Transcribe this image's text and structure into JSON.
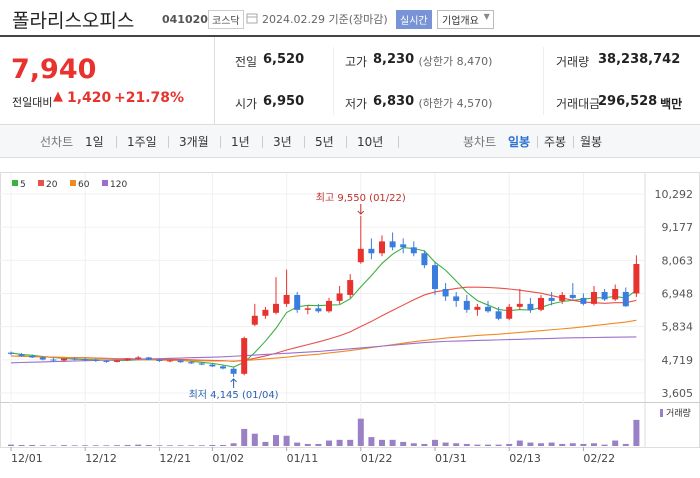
{
  "header": {
    "name": "폴라리스오피스",
    "code": "041020",
    "market": "코스닥",
    "date": "2024.02.29 기준(장마감)",
    "realtime": "실시간",
    "overview": "기업개요"
  },
  "quote": {
    "price": "7,940",
    "change_label": "전일대비",
    "change": "1,420",
    "change_pct": "+21.78%",
    "stats": [
      {
        "label": "전일",
        "value": "6,520"
      },
      {
        "label": "고가",
        "value": "8,230",
        "note": "(상한가 8,470)"
      },
      {
        "label": "거래량",
        "value": "38,238,742"
      },
      {
        "label": "시가",
        "value": "6,950"
      },
      {
        "label": "저가",
        "value": "6,830",
        "note": "(하한가 4,570)"
      },
      {
        "label": "거래대금",
        "value": "296,528",
        "unit": "백만"
      }
    ]
  },
  "tabs": {
    "line_label": "선차트",
    "line_periods": [
      "1일",
      "1주일",
      "3개월",
      "1년",
      "3년",
      "5년",
      "10년"
    ],
    "candle_label": "봉차트",
    "candle_periods": [
      "일봉",
      "주봉",
      "월봉"
    ]
  },
  "chart_data": {
    "type": "candlestick",
    "up_color": "#e8322e",
    "down_color": "#3b7ddd",
    "grid": true,
    "categories": [
      "12/01",
      null,
      null,
      null,
      null,
      null,
      null,
      "12/12",
      null,
      null,
      null,
      null,
      null,
      null,
      "12/21",
      null,
      null,
      null,
      null,
      "01/02",
      null,
      null,
      null,
      null,
      null,
      null,
      "01/11",
      null,
      null,
      null,
      null,
      null,
      null,
      "01/22",
      null,
      null,
      null,
      null,
      null,
      null,
      "01/31",
      null,
      null,
      null,
      null,
      null,
      null,
      "02/13",
      null,
      null,
      null,
      null,
      null,
      null,
      "02/22",
      null,
      null,
      null,
      null,
      null
    ],
    "open": [
      4960,
      4900,
      4850,
      4800,
      4730,
      4700,
      4760,
      4740,
      4720,
      4690,
      4650,
      4700,
      4760,
      4800,
      4720,
      4680,
      4700,
      4640,
      4600,
      4560,
      4500,
      4420,
      4250,
      5900,
      6200,
      6300,
      6600,
      6900,
      6400,
      6450,
      6350,
      6700,
      6900,
      8000,
      8450,
      8300,
      8700,
      8600,
      8500,
      8300,
      7900,
      7100,
      6850,
      6700,
      6400,
      6500,
      6350,
      6100,
      6500,
      6600,
      6400,
      6800,
      6700,
      6900,
      6800,
      6600,
      7000,
      6750,
      7000,
      6950
    ],
    "high": [
      5000,
      4950,
      4900,
      4850,
      4800,
      4780,
      4800,
      4780,
      4760,
      4720,
      4720,
      4780,
      4850,
      4820,
      4760,
      4720,
      4730,
      4680,
      4640,
      4600,
      4550,
      4460,
      5500,
      6600,
      6500,
      7500,
      7750,
      7000,
      6550,
      6600,
      6800,
      7200,
      7600,
      9550,
      8800,
      8900,
      9000,
      8800,
      8700,
      8400,
      8000,
      7300,
      7000,
      6900,
      6600,
      6700,
      6500,
      6600,
      7100,
      6800,
      6900,
      7000,
      7000,
      7300,
      6950,
      7200,
      7100,
      7250,
      7150,
      8230
    ],
    "low": [
      4880,
      4820,
      4780,
      4700,
      4650,
      4650,
      4700,
      4680,
      4650,
      4620,
      4630,
      4680,
      4720,
      4700,
      4650,
      4640,
      4620,
      4580,
      4540,
      4480,
      4400,
      4145,
      4200,
      5850,
      6100,
      6250,
      6500,
      6300,
      6250,
      6300,
      6300,
      6600,
      6800,
      7950,
      8100,
      8200,
      8400,
      8300,
      8200,
      7800,
      6900,
      6700,
      6500,
      6300,
      6200,
      6300,
      6050,
      6050,
      6400,
      6300,
      6350,
      6550,
      6600,
      6750,
      6550,
      6550,
      6700,
      6700,
      6500,
      6830
    ],
    "close": [
      4920,
      4850,
      4800,
      4730,
      4700,
      4760,
      4740,
      4720,
      4690,
      4650,
      4700,
      4760,
      4800,
      4720,
      4680,
      4700,
      4640,
      4600,
      4560,
      4500,
      4430,
      4250,
      5450,
      6200,
      6400,
      6600,
      6900,
      6400,
      6450,
      6350,
      6700,
      6950,
      7400,
      8450,
      8300,
      8700,
      8500,
      8500,
      8300,
      7900,
      7100,
      6850,
      6700,
      6400,
      6500,
      6350,
      6100,
      6500,
      6600,
      6400,
      6800,
      6700,
      6900,
      6800,
      6600,
      7000,
      6750,
      7100,
      6520,
      7940
    ],
    "series": [
      {
        "name": "5",
        "color": "#3cb043",
        "values": [
          4950,
          4900,
          4870,
          4830,
          4800,
          4768,
          4746,
          4730,
          4722,
          4712,
          4700,
          4704,
          4720,
          4726,
          4732,
          4732,
          4708,
          4668,
          4636,
          4600,
          4546,
          4476,
          4638,
          4966,
          5346,
          5780,
          6310,
          6500,
          6550,
          6540,
          6560,
          6570,
          6770,
          7170,
          7550,
          7960,
          8270,
          8490,
          8460,
          8380,
          8000,
          7730,
          7370,
          6990,
          6710,
          6560,
          6410,
          6370,
          6410,
          6390,
          6480,
          6600,
          6680,
          6720,
          6760,
          6800,
          6810,
          6850,
          6794,
          7062
        ]
      },
      {
        "name": "20",
        "color": "#e8504a",
        "values": [
          4850,
          4840,
          4830,
          4820,
          4810,
          4800,
          4790,
          4790,
          4780,
          4770,
          4760,
          4760,
          4750,
          4750,
          4740,
          4740,
          4730,
          4720,
          4710,
          4700,
          4690,
          4670,
          4700,
          4770,
          4850,
          4940,
          5050,
          5140,
          5230,
          5320,
          5420,
          5530,
          5660,
          5840,
          6010,
          6200,
          6380,
          6560,
          6740,
          6900,
          7000,
          7060,
          7120,
          7160,
          7160,
          7150,
          7130,
          7100,
          7060,
          7010,
          6960,
          6880,
          6800,
          6720,
          6660,
          6640,
          6620,
          6640,
          6640,
          6720
        ]
      },
      {
        "name": "60",
        "color": "#f08a24",
        "values": [
          4850,
          4840,
          4830,
          4820,
          4810,
          4800,
          4790,
          4780,
          4770,
          4760,
          4750,
          4740,
          4730,
          4720,
          4710,
          4700,
          4700,
          4690,
          4690,
          4680,
          4680,
          4680,
          4700,
          4720,
          4750,
          4780,
          4810,
          4850,
          4880,
          4910,
          4950,
          4990,
          5030,
          5080,
          5130,
          5180,
          5230,
          5280,
          5330,
          5370,
          5410,
          5450,
          5480,
          5510,
          5540,
          5560,
          5580,
          5610,
          5640,
          5670,
          5700,
          5730,
          5760,
          5790,
          5830,
          5870,
          5910,
          5950,
          5990,
          6050
        ]
      },
      {
        "name": "120",
        "color": "#9b6fd0",
        "values": [
          4620,
          4630,
          4640,
          4650,
          4660,
          4670,
          4680,
          4690,
          4700,
          4710,
          4720,
          4730,
          4740,
          4750,
          4760,
          4770,
          4780,
          4790,
          4800,
          4810,
          4820,
          4840,
          4860,
          4880,
          4900,
          4920,
          4940,
          4960,
          4980,
          5000,
          5030,
          5060,
          5090,
          5120,
          5150,
          5180,
          5210,
          5240,
          5270,
          5300,
          5320,
          5340,
          5350,
          5360,
          5370,
          5380,
          5390,
          5400,
          5410,
          5420,
          5430,
          5440,
          5450,
          5460,
          5465,
          5470,
          5475,
          5480,
          5485,
          5490
        ]
      }
    ],
    "volume_label": "거래량",
    "volume_color": "#9a80c4",
    "volume_ylim": [
      0,
      60000000
    ],
    "volume": [
      2000000,
      1500000,
      1500000,
      1000000,
      1000000,
      1200000,
      1000000,
      1000000,
      1000000,
      1000000,
      1200000,
      1500000,
      2000000,
      1500000,
      1000000,
      1000000,
      1000000,
      1000000,
      1000000,
      1500000,
      1500000,
      4000000,
      25000000,
      18000000,
      6000000,
      16000000,
      15000000,
      5000000,
      3000000,
      3000000,
      8000000,
      9000000,
      9000000,
      40000000,
      13000000,
      9000000,
      9000000,
      6000000,
      4000000,
      3000000,
      9000000,
      5000000,
      4000000,
      3000000,
      2000000,
      2000000,
      2000000,
      3000000,
      8000000,
      5000000,
      4000000,
      5000000,
      3000000,
      4000000,
      3000000,
      4000000,
      2000000,
      8000000,
      3000000,
      38238742
    ],
    "ylim": [
      3605,
      10292
    ],
    "yticks": [
      {
        "value": 10292,
        "label": "10,292"
      },
      {
        "value": 9177,
        "label": "9,177"
      },
      {
        "value": 8063,
        "label": "8,063"
      },
      {
        "value": 6948,
        "label": "6,948"
      },
      {
        "value": 5834,
        "label": "5,834"
      },
      {
        "value": 4719,
        "label": "4,719"
      },
      {
        "value": 3605,
        "label": "3,605"
      }
    ],
    "high_annotation": {
      "label": "최고 9,550 (01/22)",
      "value": 9550
    },
    "low_annotation": {
      "label": "최저 4,145 (01/04)",
      "value": 4145
    }
  }
}
